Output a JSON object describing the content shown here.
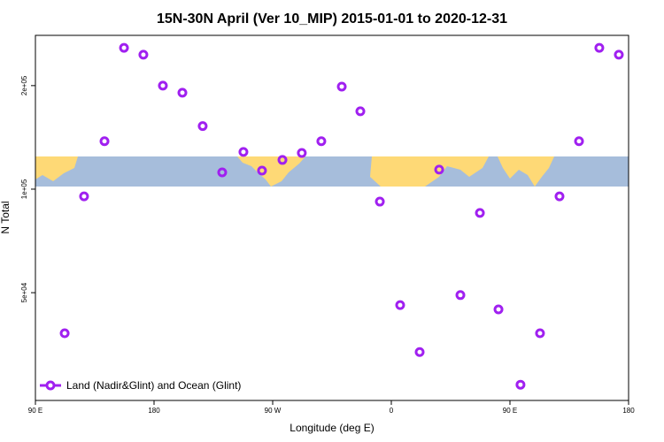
{
  "chart_data": {
    "type": "scatter",
    "title": "15N-30N April (Ver 10_MIP)   2015-01-01 to 2020-12-31",
    "xlabel": "Longitude (deg E)",
    "ylabel": "N Total",
    "x": [
      112.2,
      126.9,
      142.4,
      157.2,
      171.9,
      186.7,
      201.5,
      216.9,
      231.7,
      247.8,
      261.9,
      277.4,
      292.1,
      306.9,
      322.4,
      336.5,
      351.3,
      366.7,
      381.5,
      396.3,
      412.4,
      427.2,
      441.3,
      458.0,
      472.8,
      487.6,
      502.4,
      517.8,
      532.6
    ],
    "series": [
      {
        "name": "Land (Nadir&Glint) and Ocean (Glint)",
        "color": "#a020f0",
        "values": [
          38100,
          95300,
          137800,
          257600,
          246000,
          200000,
          190700,
          152500,
          111900,
          128300,
          113200,
          121600,
          127400,
          137800,
          198700,
          168400,
          92000,
          46000,
          33600,
          114000,
          49200,
          85300,
          44700,
          27000,
          38100,
          95300,
          137800,
          257600,
          246000
        ]
      }
    ],
    "xlim": [
      90,
      540
    ],
    "xticks": [
      {
        "value": 90,
        "label": "90 E"
      },
      180,
      {
        "value": 270,
        "label": "90 W"
      },
      {
        "value": 360,
        "label": "0"
      },
      {
        "value": 450,
        "label": "90 E"
      },
      {
        "value": 540,
        "label": "180"
      }
    ],
    "ylim": [
      24300,
      280000
    ],
    "yticks": [
      {
        "value": 50000,
        "label": "5e+04"
      },
      {
        "value": 100000,
        "label": "1e+05"
      },
      {
        "value": 200000,
        "label": "2e+05"
      }
    ],
    "log_y": true,
    "legend": "bottom-left"
  }
}
